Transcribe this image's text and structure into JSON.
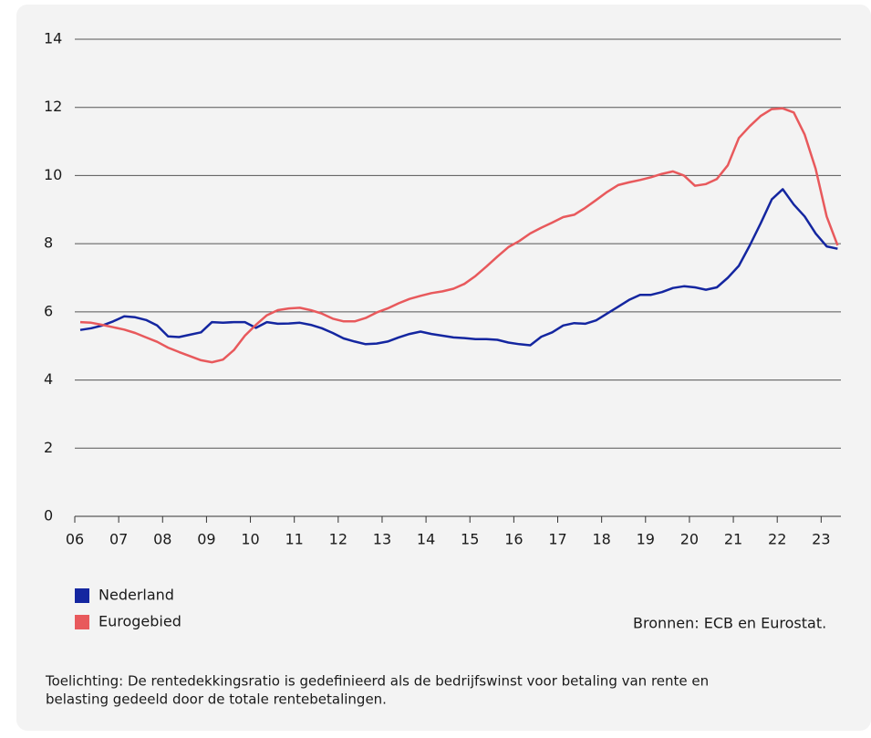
{
  "chart_data": {
    "type": "line",
    "x": [
      2006.125,
      2006.375,
      2006.625,
      2006.875,
      2007.125,
      2007.375,
      2007.625,
      2007.875,
      2008.125,
      2008.375,
      2008.625,
      2008.875,
      2009.125,
      2009.375,
      2009.625,
      2009.875,
      2010.125,
      2010.375,
      2010.625,
      2010.875,
      2011.125,
      2011.375,
      2011.625,
      2011.875,
      2012.125,
      2012.375,
      2012.625,
      2012.875,
      2013.125,
      2013.375,
      2013.625,
      2013.875,
      2014.125,
      2014.375,
      2014.625,
      2014.875,
      2015.125,
      2015.375,
      2015.625,
      2015.875,
      2016.125,
      2016.375,
      2016.625,
      2016.875,
      2017.125,
      2017.375,
      2017.625,
      2017.875,
      2018.125,
      2018.375,
      2018.625,
      2018.875,
      2019.125,
      2019.375,
      2019.625,
      2019.875,
      2020.125,
      2020.375,
      2020.625,
      2020.875,
      2021.125,
      2021.375,
      2021.625,
      2021.875,
      2022.125,
      2022.375,
      2022.625,
      2022.875,
      2023.125,
      2023.375
    ],
    "series": [
      {
        "name": "Nederland",
        "color": "#1426a0",
        "values": [
          5.47,
          5.52,
          5.6,
          5.72,
          5.87,
          5.84,
          5.76,
          5.6,
          5.28,
          5.26,
          5.33,
          5.4,
          5.7,
          5.68,
          5.7,
          5.7,
          5.53,
          5.7,
          5.65,
          5.66,
          5.68,
          5.62,
          5.52,
          5.38,
          5.22,
          5.13,
          5.05,
          5.07,
          5.13,
          5.25,
          5.35,
          5.42,
          5.35,
          5.3,
          5.25,
          5.23,
          5.2,
          5.2,
          5.18,
          5.1,
          5.05,
          5.02,
          5.27,
          5.4,
          5.6,
          5.67,
          5.65,
          5.75,
          5.95,
          6.15,
          6.35,
          6.5,
          6.5,
          6.58,
          6.7,
          6.75,
          6.72,
          6.65,
          6.72,
          7.0,
          7.35,
          7.95,
          8.6,
          9.3,
          9.6,
          9.15,
          8.8,
          8.3,
          7.92,
          7.85
        ]
      },
      {
        "name": "Eurogebied",
        "color": "#e8595c",
        "values": [
          5.7,
          5.68,
          5.62,
          5.55,
          5.48,
          5.38,
          5.25,
          5.12,
          4.95,
          4.82,
          4.7,
          4.58,
          4.52,
          4.6,
          4.88,
          5.3,
          5.62,
          5.9,
          6.05,
          6.1,
          6.12,
          6.05,
          5.95,
          5.8,
          5.72,
          5.72,
          5.82,
          5.98,
          6.1,
          6.25,
          6.38,
          6.47,
          6.55,
          6.6,
          6.68,
          6.82,
          7.05,
          7.33,
          7.62,
          7.9,
          8.08,
          8.3,
          8.47,
          8.62,
          8.78,
          8.85,
          9.05,
          9.28,
          9.52,
          9.72,
          9.8,
          9.87,
          9.95,
          10.05,
          10.12,
          10.0,
          9.7,
          9.75,
          9.9,
          10.3,
          11.1,
          11.45,
          11.75,
          11.95,
          11.97,
          11.85,
          11.2,
          10.2,
          8.8,
          7.95
        ]
      }
    ],
    "xlim": [
      2006,
      2023.45
    ],
    "xticks": [
      {
        "value": 2006,
        "label": "06"
      },
      {
        "value": 2007,
        "label": "07"
      },
      {
        "value": 2008,
        "label": "08"
      },
      {
        "value": 2009,
        "label": "09"
      },
      {
        "value": 2010,
        "label": "10"
      },
      {
        "value": 2011,
        "label": "11"
      },
      {
        "value": 2012,
        "label": "12"
      },
      {
        "value": 2013,
        "label": "13"
      },
      {
        "value": 2014,
        "label": "14"
      },
      {
        "value": 2015,
        "label": "15"
      },
      {
        "value": 2016,
        "label": "16"
      },
      {
        "value": 2017,
        "label": "17"
      },
      {
        "value": 2018,
        "label": "18"
      },
      {
        "value": 2019,
        "label": "19"
      },
      {
        "value": 2020,
        "label": "20"
      },
      {
        "value": 2021,
        "label": "21"
      },
      {
        "value": 2022,
        "label": "22"
      },
      {
        "value": 2023,
        "label": "23"
      }
    ],
    "ylim": [
      0,
      14
    ],
    "yticks": [
      0,
      2,
      4,
      6,
      8,
      10,
      12,
      14
    ],
    "grid": true,
    "source": "Bronnen: ECB en Eurostat.",
    "note": [
      "Toelichting: De rentedekkingsratio is gedefinieerd als de bedrijfswinst voor betaling van rente en",
      "belasting gedeeld door de totale rentebetalingen."
    ]
  }
}
